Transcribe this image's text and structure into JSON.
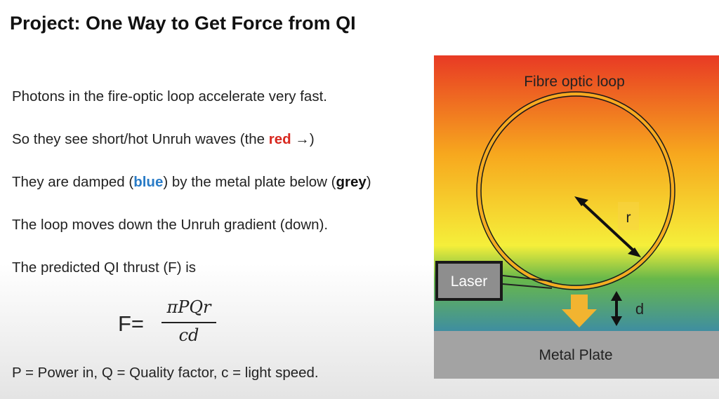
{
  "slide": {
    "title": "Project: One Way to Get Force from QI"
  },
  "bullets": {
    "b1": "Photons in the fire-optic loop accelerate very fast.",
    "b2_pre": "So they see short/hot Unruh waves (the ",
    "b2_red": "red",
    "b2_arrow": " →",
    "b2_post": ")",
    "b3_pre": "They are damped (",
    "b3_blue": "blue",
    "b3_mid": ") by the metal plate below (",
    "b3_grey": "grey",
    "b3_post": ")",
    "b4": "The loop moves down the Unruh gradient (down).",
    "b5": "The predicted QI thrust (F) is"
  },
  "formula": {
    "lhs": "F=",
    "numerator": "πPQr",
    "denominator": "cd"
  },
  "footnote": "P = Power in, Q = Quality factor, c = light speed.",
  "diagram": {
    "loop_label": "Fibre optic loop",
    "radius_label": "r",
    "laser_label": "Laser",
    "gap_label": "d",
    "plate_label": "Metal Plate",
    "colors": {
      "hot": "#e83a24",
      "warm": "#f7a81e",
      "yellow": "#f5ef3a",
      "green": "#68b84a",
      "blue": "#3f8ea0",
      "plate": "#a3a3a3",
      "loop_ring": "#f6ab20",
      "force_arrow": "#f2b430"
    }
  }
}
